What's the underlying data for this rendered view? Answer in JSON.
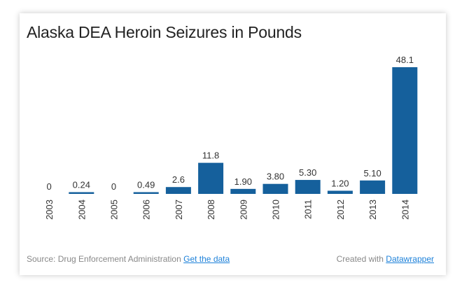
{
  "chart_data": {
    "type": "bar",
    "title": "Alaska DEA Heroin Seizures in Pounds",
    "categories": [
      "2003",
      "2004",
      "2005",
      "2006",
      "2007",
      "2008",
      "2009",
      "2010",
      "2011",
      "2012",
      "2013",
      "2014"
    ],
    "values": [
      0,
      0.24,
      0,
      0.49,
      2.6,
      11.8,
      1.9,
      3.8,
      5.3,
      1.2,
      5.1,
      48.1
    ],
    "data_labels": [
      "0",
      "0.24",
      "0",
      "0.49",
      "2.6",
      "11.8",
      "1.90",
      "3.80",
      "5.30",
      "1.20",
      "5.10",
      "48.1"
    ],
    "xlabel": "",
    "ylabel": "",
    "ylim": [
      0,
      48.1
    ],
    "grid": false,
    "bar_color": "#15609c"
  },
  "footer": {
    "source": "Source: Drug Enforcement Administration",
    "get_data": "Get the data",
    "created_with": "Created with",
    "datawrapper": "Datawrapper"
  }
}
